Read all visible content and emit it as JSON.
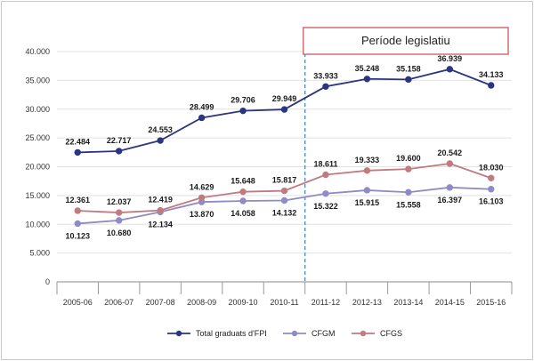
{
  "chart_data": {
    "type": "line",
    "categories": [
      "2005-06",
      "2006-07",
      "2007-08",
      "2008-09",
      "2009-10",
      "2010-11",
      "2011-12",
      "2012-13",
      "2013-14",
      "2014-15",
      "2015-16"
    ],
    "series": [
      {
        "name": "Total graduats d'FPI",
        "color": "#2b3580",
        "values": [
          22484,
          22717,
          24553,
          28499,
          29706,
          29949,
          33933,
          35248,
          35158,
          36939,
          34133
        ],
        "labels": [
          "22.484",
          "22.717",
          "24.553",
          "28.499",
          "29.706",
          "29.949",
          "33.933",
          "35.248",
          "35.158",
          "36.939",
          "34.133"
        ]
      },
      {
        "name": "CFGM",
        "color": "#8f8bc4",
        "values": [
          10123,
          10680,
          12134,
          13870,
          14058,
          14132,
          15322,
          15915,
          15558,
          16397,
          16103
        ],
        "labels": [
          "10.123",
          "10.680",
          "12.134",
          "13.870",
          "14.058",
          "14.132",
          "15.322",
          "15.915",
          "15.558",
          "16.397",
          "16.103"
        ]
      },
      {
        "name": "CFGS",
        "color": "#c07a80",
        "values": [
          12361,
          12037,
          12419,
          14629,
          15648,
          15817,
          18611,
          19333,
          19600,
          20542,
          18030
        ],
        "labels": [
          "12.361",
          "12.037",
          "12.419",
          "14.629",
          "15.648",
          "15.817",
          "18.611",
          "19.333",
          "19.600",
          "20.542",
          "18.030"
        ]
      }
    ],
    "y_ticks": [
      {
        "value": 0,
        "label": "0"
      },
      {
        "value": 5000,
        "label": "5.000"
      },
      {
        "value": 10000,
        "label": "10.000"
      },
      {
        "value": 15000,
        "label": "15.000"
      },
      {
        "value": 20000,
        "label": "20.000"
      },
      {
        "value": 25000,
        "label": "25.000"
      },
      {
        "value": 30000,
        "label": "30.000"
      },
      {
        "value": 35000,
        "label": "35.000"
      },
      {
        "value": 40000,
        "label": "40.000"
      }
    ],
    "ylim": [
      0,
      40000
    ],
    "annotation": "Període legislatiu",
    "period_start_after": "2010-11",
    "legend_position": "bottom"
  }
}
